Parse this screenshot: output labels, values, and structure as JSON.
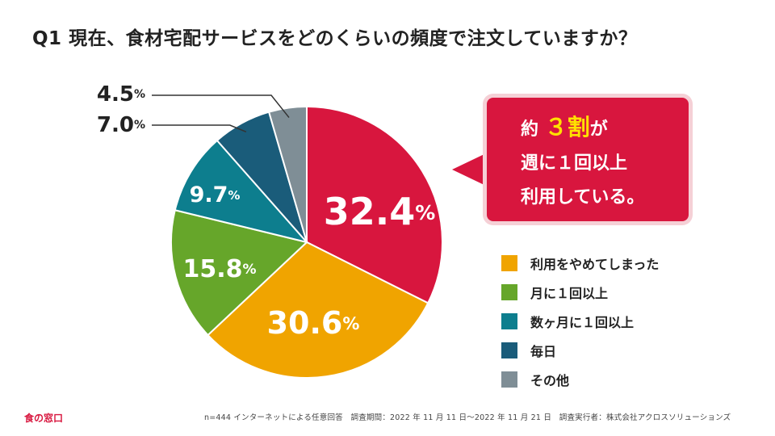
{
  "title": "Q1 現在、食材宅配サービスをどのくらいの頻度で注文していますか？",
  "chart_data": {
    "type": "pie",
    "title": "Q1 現在、食材宅配サービスをどのくらいの頻度で注文していますか？",
    "unit": "%",
    "slices": [
      {
        "key": "weekly",
        "label": "週に１回以上",
        "value": 32.4,
        "color": "#d8163e"
      },
      {
        "key": "stopped",
        "label": "利用をやめてしまった",
        "value": 30.6,
        "color": "#f0a400"
      },
      {
        "key": "monthly",
        "label": "月に１回以上",
        "value": 15.8,
        "color": "#66a62a"
      },
      {
        "key": "few_months",
        "label": "数ヶ月に１回以上",
        "value": 9.7,
        "color": "#0d7e8e"
      },
      {
        "key": "daily",
        "label": "毎日",
        "value": 7.0,
        "color": "#1a5c7a"
      },
      {
        "key": "other",
        "label": "その他",
        "value": 4.5,
        "color": "#7f8e96"
      }
    ],
    "value_labels": {
      "weekly": "32.4",
      "stopped": "30.6",
      "monthly": "15.8",
      "few_months": "9.7",
      "daily": "7.0",
      "other": "4.5"
    },
    "legend": [
      "stopped",
      "monthly",
      "few_months",
      "daily",
      "other"
    ],
    "legend_position": "right"
  },
  "callout": {
    "pre": "約",
    "highlight": "３割",
    "post": "が",
    "line2": "週に１回以上",
    "line3": "利用している。"
  },
  "legend": [
    {
      "label": "利用をやめてしまった",
      "color": "#f0a400"
    },
    {
      "label": "月に１回以上",
      "color": "#66a62a"
    },
    {
      "label": "数ヶ月に１回以上",
      "color": "#0d7e8e"
    },
    {
      "label": "毎日",
      "color": "#1a5c7a"
    },
    {
      "label": "その他",
      "color": "#7f8e96"
    }
  ],
  "logo": "食の窓口",
  "footnote": "n=444 インターネットによる任意回答　調査期間：2022 年 11 月 11 日〜2022 年 11 月 21 日　調査実行者：株式会社アクロスソリューションズ"
}
